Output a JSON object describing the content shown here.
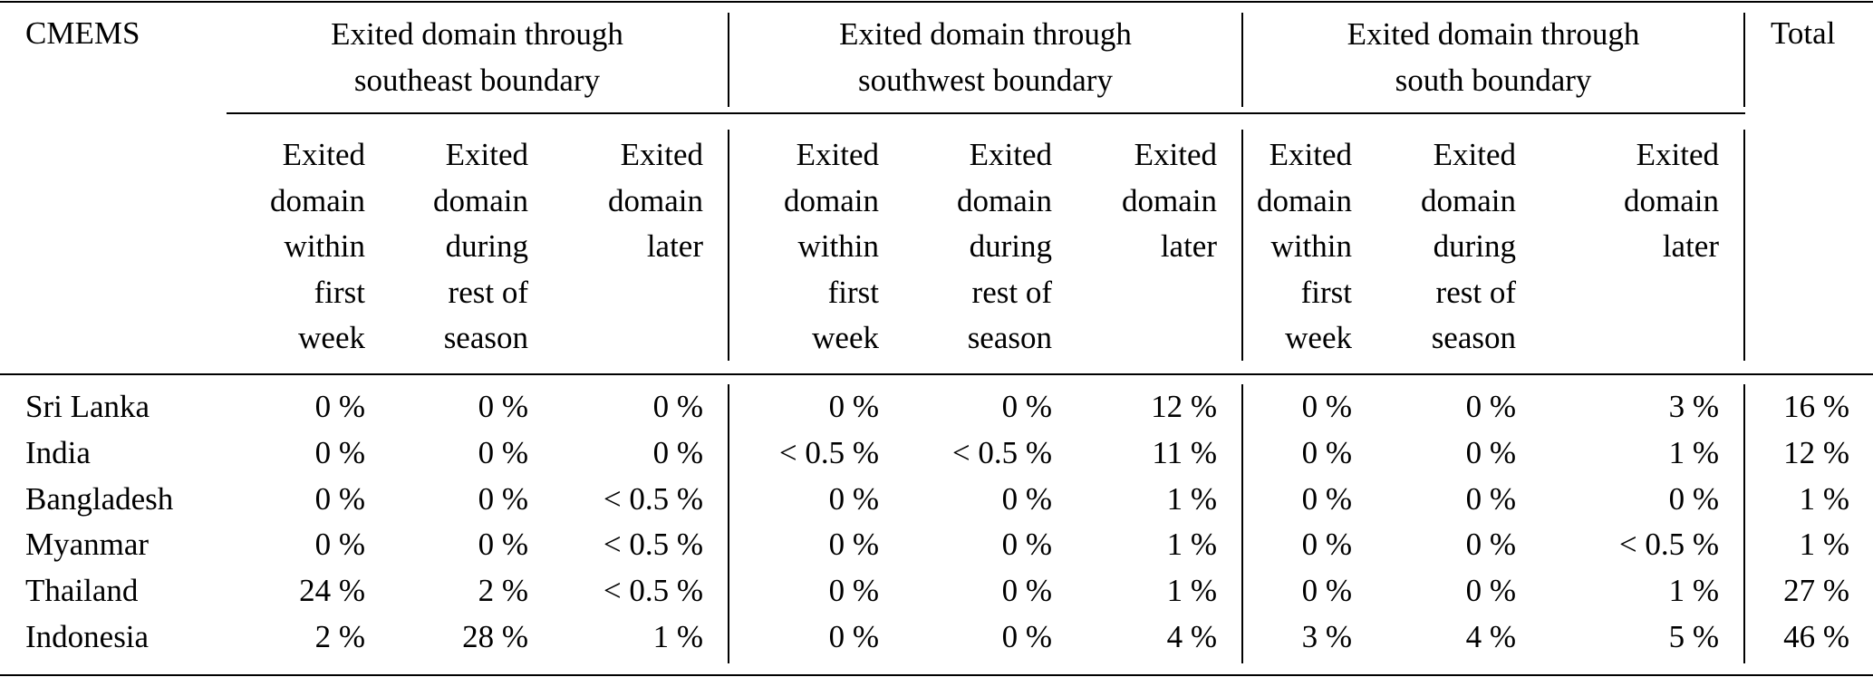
{
  "table": {
    "corner_label": "CMEMS",
    "total_label": "Total",
    "groups": [
      {
        "label": "Exited domain through\nsoutheast boundary"
      },
      {
        "label": "Exited domain through\nsouthwest boundary"
      },
      {
        "label": "Exited domain through\nsouth boundary"
      }
    ],
    "subheaders": [
      "Exited\ndomain\nwithin\nfirst\nweek",
      "Exited\ndomain\nduring\nrest of\nseason",
      "Exited\ndomain\nlater"
    ],
    "rows": [
      {
        "label": "Sri Lanka",
        "cells": [
          "0 %",
          "0 %",
          "0 %",
          "0 %",
          "0 %",
          "12 %",
          "0 %",
          "0 %",
          "3 %",
          "16 %"
        ]
      },
      {
        "label": "India",
        "cells": [
          "0 %",
          "0 %",
          "0 %",
          "< 0.5 %",
          "< 0.5 %",
          "11 %",
          "0 %",
          "0 %",
          "1 %",
          "12 %"
        ]
      },
      {
        "label": "Bangladesh",
        "cells": [
          "0 %",
          "0 %",
          "< 0.5 %",
          "0 %",
          "0 %",
          "1 %",
          "0 %",
          "0 %",
          "0 %",
          "1 %"
        ]
      },
      {
        "label": "Myanmar",
        "cells": [
          "0 %",
          "0 %",
          "< 0.5 %",
          "0 %",
          "0 %",
          "1 %",
          "0 %",
          "0 %",
          "< 0.5 %",
          "1 %"
        ]
      },
      {
        "label": "Thailand",
        "cells": [
          "24 %",
          "2 %",
          "< 0.5 %",
          "0 %",
          "0 %",
          "1 %",
          "0 %",
          "0 %",
          "1 %",
          "27 %"
        ]
      },
      {
        "label": "Indonesia",
        "cells": [
          "2 %",
          "28 %",
          "1 %",
          "0 %",
          "0 %",
          "4 %",
          "3 %",
          "4 %",
          "5 %",
          "46 %"
        ]
      }
    ]
  }
}
